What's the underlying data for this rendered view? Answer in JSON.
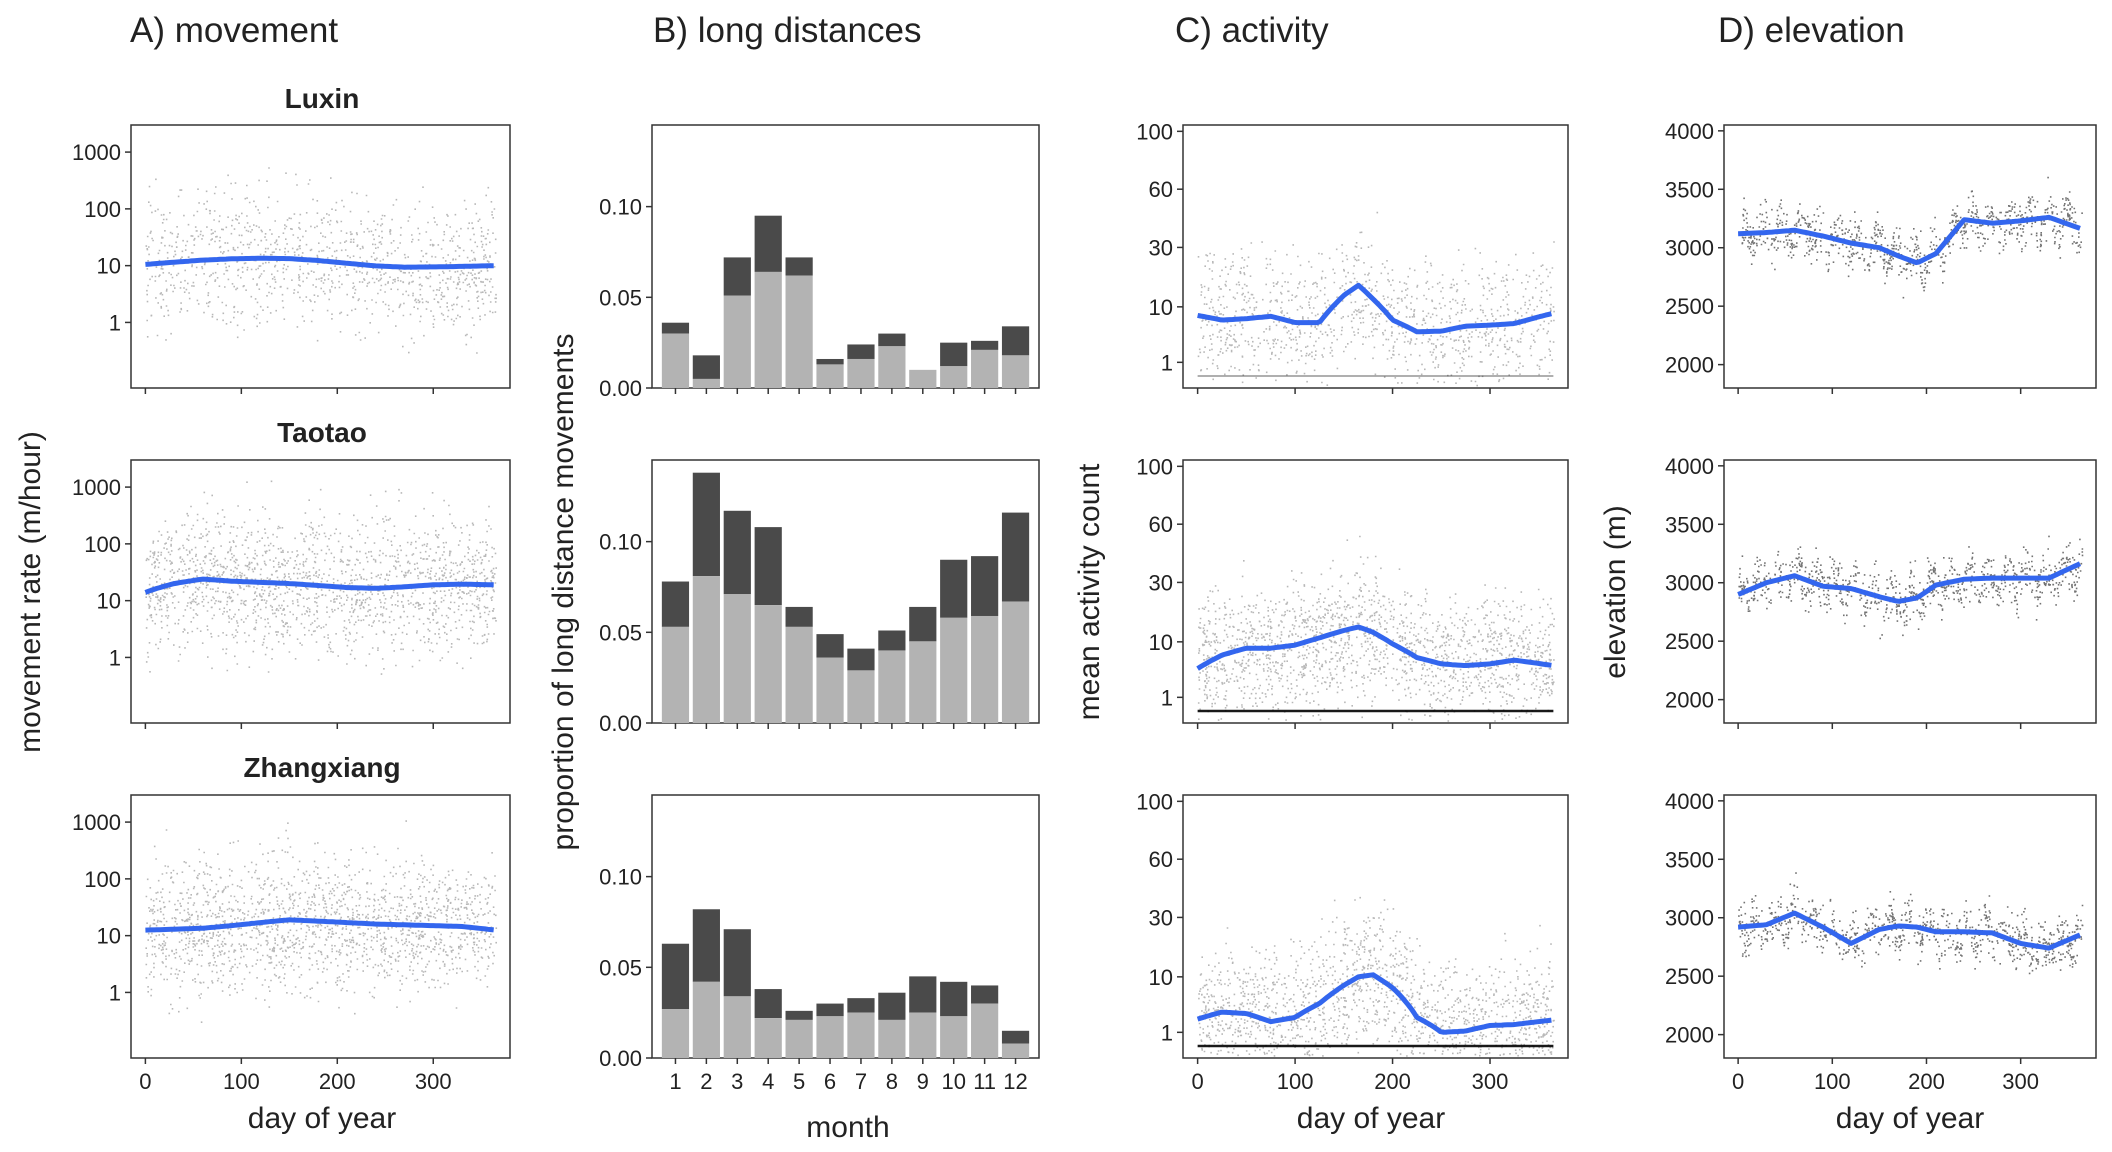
{
  "column_titles": [
    "A) movement",
    "B) long distances",
    "C) activity",
    "D) elevation"
  ],
  "row_titles": [
    "Luxin",
    "Taotao",
    "Zhangxiang"
  ],
  "colors": {
    "smooth_line": "#3366EE",
    "points": "#000000",
    "bar_dark": "#4A4A4A",
    "bar_light": "#B3B3B3",
    "panel_border": "#333333"
  },
  "chart_data": [
    {
      "panel": "A",
      "type": "scatter",
      "title": "A) movement",
      "xlabel": "day of year",
      "ylabel": "movement rate (m/hour)",
      "scale_y": "log",
      "xlim": [
        -15,
        380
      ],
      "ylim": [
        0.07,
        3000
      ],
      "xticks": [
        0,
        100,
        200,
        300
      ],
      "xtick_labels": [
        "0",
        "100",
        "200",
        "300"
      ],
      "yticks": [
        1,
        10,
        100,
        1000
      ],
      "ytick_labels": [
        "1",
        "10",
        "100",
        "1000"
      ],
      "smooth_x": [
        0,
        30,
        60,
        90,
        120,
        150,
        180,
        210,
        240,
        270,
        300,
        330,
        365
      ],
      "series": [
        {
          "name": "Luxin",
          "smooth_y": [
            10.5,
            11.5,
            12.5,
            13.2,
            13.5,
            13.3,
            12.3,
            11.0,
            9.9,
            9.4,
            9.5,
            9.7,
            10.0
          ]
        },
        {
          "name": "Taotao",
          "smooth_y": [
            14,
            20,
            24,
            22,
            21,
            20,
            18.5,
            17,
            16.5,
            17.5,
            19,
            19.5,
            19
          ]
        },
        {
          "name": "Zhangxiang",
          "smooth_y": [
            12.5,
            13,
            13.5,
            15,
            17,
            19,
            18,
            17,
            16,
            15.5,
            15,
            14.5,
            12.5
          ]
        }
      ]
    },
    {
      "panel": "B",
      "type": "bar",
      "title": "B) long distances",
      "xlabel": "month",
      "ylabel": "proportion of long distance movements",
      "ylim": [
        0,
        0.145
      ],
      "yticks": [
        0.0,
        0.05,
        0.1
      ],
      "ytick_labels": [
        "0.00",
        "0.05",
        "0.10"
      ],
      "categories": [
        "1",
        "2",
        "3",
        "4",
        "5",
        "6",
        "7",
        "8",
        "9",
        "10",
        "11",
        "12"
      ],
      "series": [
        {
          "name": "Luxin",
          "light": [
            0.03,
            0.005,
            0.051,
            0.064,
            0.062,
            0.013,
            0.016,
            0.023,
            0.01,
            0.012,
            0.021,
            0.018
          ],
          "total": [
            0.036,
            0.018,
            0.072,
            0.095,
            0.072,
            0.016,
            0.024,
            0.03,
            0.01,
            0.025,
            0.026,
            0.034
          ]
        },
        {
          "name": "Taotao",
          "light": [
            0.053,
            0.081,
            0.071,
            0.065,
            0.053,
            0.036,
            0.029,
            0.04,
            0.045,
            0.058,
            0.059,
            0.067
          ],
          "total": [
            0.078,
            0.138,
            0.117,
            0.108,
            0.064,
            0.049,
            0.041,
            0.051,
            0.064,
            0.09,
            0.092,
            0.116
          ]
        },
        {
          "name": "Zhangxiang",
          "light": [
            0.027,
            0.042,
            0.034,
            0.022,
            0.021,
            0.023,
            0.025,
            0.021,
            0.025,
            0.023,
            0.03,
            0.008
          ],
          "total": [
            0.063,
            0.082,
            0.071,
            0.038,
            0.026,
            0.03,
            0.033,
            0.036,
            0.045,
            0.042,
            0.04,
            0.015
          ]
        }
      ]
    },
    {
      "panel": "C",
      "type": "scatter",
      "title": "C) activity",
      "xlabel": "day of year",
      "ylabel": "mean activity count",
      "scale_y": "sqrt",
      "xlim": [
        -15,
        380
      ],
      "ylim": [
        0,
        105
      ],
      "xticks": [
        0,
        100,
        200,
        300
      ],
      "xtick_labels": [
        "0",
        "100",
        "200",
        "300"
      ],
      "yticks": [
        1,
        10,
        30,
        60,
        100
      ],
      "ytick_labels": [
        "1",
        "10",
        "30",
        "60",
        "100"
      ],
      "smooth_x": [
        0,
        25,
        50,
        75,
        100,
        125,
        150,
        165,
        180,
        200,
        225,
        250,
        275,
        300,
        325,
        365
      ],
      "series": [
        {
          "name": "Luxin",
          "smooth_y": [
            8,
            7,
            7.3,
            7.8,
            6.5,
            6.5,
            13,
            16,
            12,
            7,
            4.8,
            4.9,
            5.8,
            6.0,
            6.3,
            8.5
          ]
        },
        {
          "name": "Taotao",
          "smooth_y": [
            4.5,
            7,
            8.5,
            8.5,
            9.2,
            11,
            13,
            14,
            12.5,
            9.5,
            6.5,
            5.3,
            5.0,
            5.3,
            6.0,
            5.0
          ]
        },
        {
          "name": "Zhangxiang",
          "smooth_y": [
            2.3,
            3.2,
            3.0,
            2.0,
            2.5,
            4.5,
            8,
            10,
            10.5,
            7.5,
            2.5,
            1.0,
            1.1,
            1.6,
            1.7,
            2.2
          ]
        }
      ]
    },
    {
      "panel": "D",
      "type": "scatter",
      "title": "D) elevation",
      "xlabel": "day of year",
      "ylabel": "elevation (m)",
      "xlim": [
        -15,
        380
      ],
      "ylim": [
        1800,
        4050
      ],
      "xticks": [
        0,
        100,
        200,
        300
      ],
      "xtick_labels": [
        "0",
        "100",
        "200",
        "300"
      ],
      "yticks": [
        2000,
        2500,
        3000,
        3500,
        4000
      ],
      "ytick_labels": [
        "2000",
        "2500",
        "3000",
        "3500",
        "4000"
      ],
      "smooth_x": [
        0,
        30,
        60,
        90,
        120,
        150,
        170,
        190,
        210,
        240,
        270,
        300,
        330,
        365
      ],
      "series": [
        {
          "name": "Luxin",
          "smooth_y": [
            3120,
            3130,
            3150,
            3100,
            3040,
            3000,
            2930,
            2870,
            2950,
            3240,
            3210,
            3230,
            3260,
            3160
          ]
        },
        {
          "name": "Taotao",
          "smooth_y": [
            2900,
            3000,
            3060,
            2970,
            2950,
            2880,
            2840,
            2870,
            2980,
            3030,
            3040,
            3040,
            3040,
            3170
          ]
        },
        {
          "name": "Zhangxiang",
          "smooth_y": [
            2920,
            2940,
            3040,
            2920,
            2780,
            2900,
            2930,
            2920,
            2880,
            2880,
            2870,
            2780,
            2740,
            2860
          ]
        }
      ]
    }
  ]
}
